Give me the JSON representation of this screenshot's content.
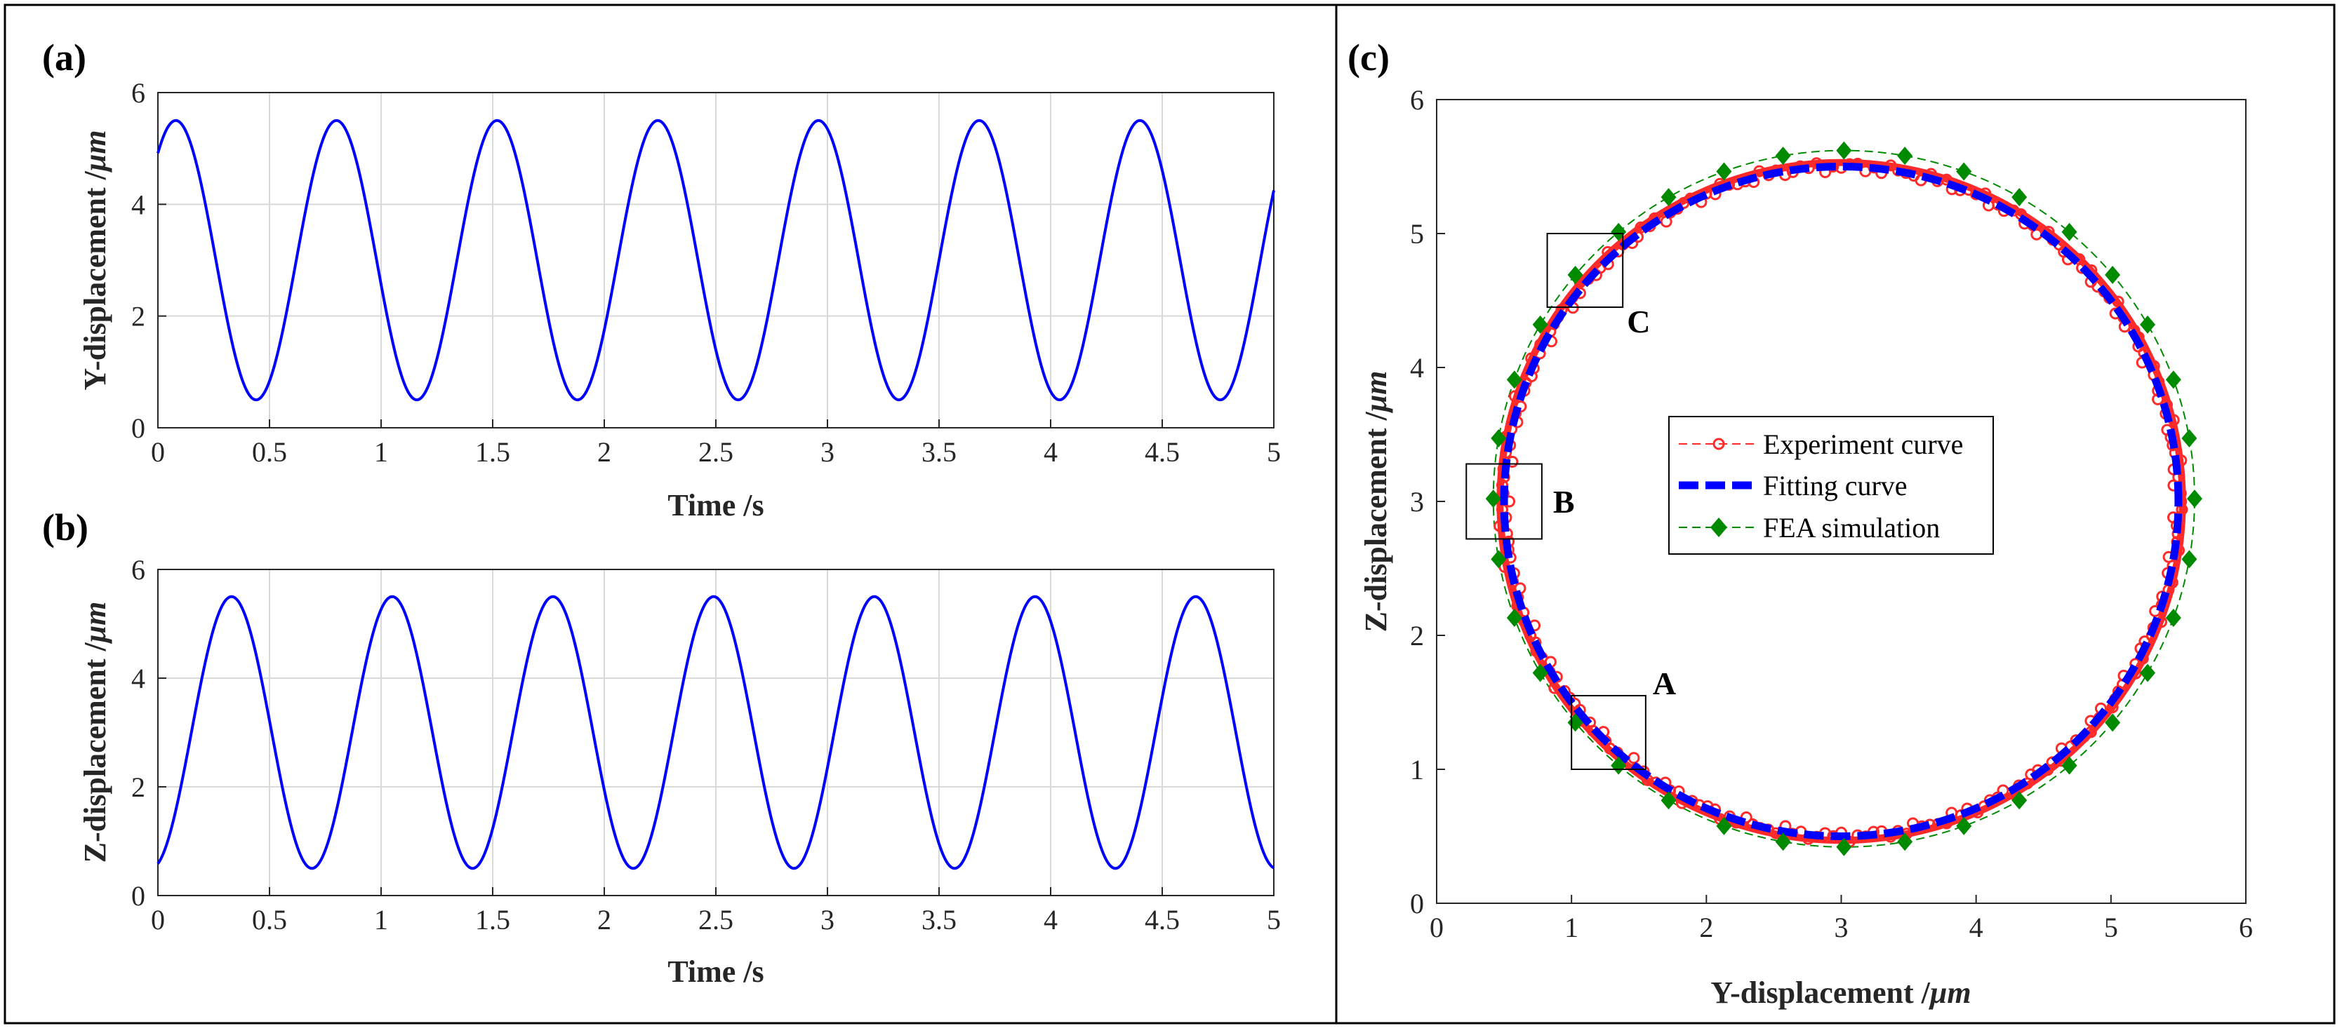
{
  "panels": {
    "a": "(a)",
    "b": "(b)",
    "c": "(c)"
  },
  "colors": {
    "blue": "#0000ff",
    "red": "#ff2a2a",
    "green": "#008a00",
    "grid": "#d9d9d9"
  },
  "chart_data": [
    {
      "id": "a",
      "type": "line",
      "title": "",
      "xlabel": "Time /s",
      "ylabel_text": "Y-displacement /",
      "ylabel_unit": "μm",
      "xlim": [
        0,
        5
      ],
      "ylim": [
        0,
        6
      ],
      "xticks": [
        0,
        0.5,
        1,
        1.5,
        2,
        2.5,
        3,
        3.5,
        4,
        4.5,
        5
      ],
      "yticks": [
        0,
        2,
        4,
        6
      ],
      "grid": true,
      "series": [
        {
          "name": "Y-displacement",
          "function": "3 + 2.5*cos(2*pi*(t - 0.08)/0.72)",
          "amplitude": 2.5,
          "offset": 3,
          "period": 0.72,
          "peak_time": 0.08,
          "color": "#0000ff"
        }
      ]
    },
    {
      "id": "b",
      "type": "line",
      "title": "",
      "xlabel": "Time /s",
      "ylabel_text": "Z-displacement /",
      "ylabel_unit": "μm",
      "xlim": [
        0,
        5
      ],
      "ylim": [
        0,
        6
      ],
      "xticks": [
        0,
        0.5,
        1,
        1.5,
        2,
        2.5,
        3,
        3.5,
        4,
        4.5,
        5
      ],
      "yticks": [
        0,
        2,
        4,
        6
      ],
      "grid": true,
      "series": [
        {
          "name": "Z-displacement",
          "function": "3 + 2.5*cos(2*pi*(t - 0.33)/0.72)",
          "amplitude": 2.5,
          "offset": 3,
          "period": 0.72,
          "peak_time": 0.33,
          "color": "#0000ff"
        }
      ]
    },
    {
      "id": "c",
      "type": "line",
      "title": "",
      "xlabel_text": "Y-displacement /",
      "xlabel_unit": "μm",
      "ylabel_text": "Z-displacement /",
      "ylabel_unit": "μm",
      "xlim": [
        0,
        6
      ],
      "ylim": [
        0,
        6
      ],
      "xticks": [
        0,
        1,
        2,
        3,
        4,
        5,
        6
      ],
      "yticks": [
        0,
        1,
        2,
        3,
        4,
        5,
        6
      ],
      "grid": false,
      "legend_position": "center",
      "series": [
        {
          "name": "Experiment curve",
          "center": [
            3,
            3
          ],
          "radius": 2.5,
          "color": "#ff2a2a",
          "style": "dashed-circle-markers"
        },
        {
          "name": "Fitting curve",
          "center": [
            3,
            3
          ],
          "radius": 2.5,
          "color": "#0000ff",
          "style": "thick-dashed"
        },
        {
          "name": "FEA simulation",
          "center": [
            3.02,
            3.02
          ],
          "radius": 2.6,
          "color": "#008a00",
          "style": "dashed-diamond-markers",
          "n_markers": 36
        }
      ],
      "regions": [
        {
          "label": "A",
          "x": [
            1.0,
            1.55
          ],
          "y": [
            1.0,
            1.55
          ]
        },
        {
          "label": "B",
          "x": [
            0.22,
            0.78
          ],
          "y": [
            2.72,
            3.28
          ]
        },
        {
          "label": "C",
          "x": [
            0.82,
            1.38
          ],
          "y": [
            4.45,
            5.0
          ]
        }
      ]
    }
  ]
}
